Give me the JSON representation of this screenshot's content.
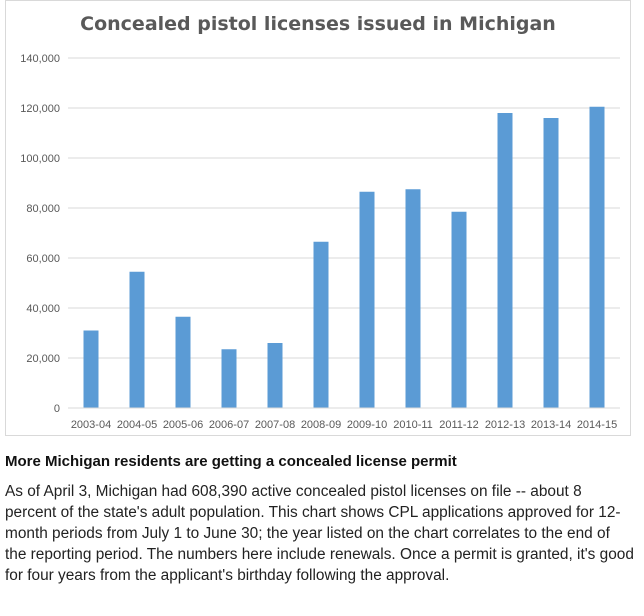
{
  "chart_data": {
    "type": "bar",
    "title": "Concealed pistol licenses issued in Michigan",
    "categories": [
      "2003-04",
      "2004-05",
      "2005-06",
      "2006-07",
      "2007-08",
      "2008-09",
      "2009-10",
      "2010-11",
      "2011-12",
      "2012-13",
      "2013-14",
      "2014-15"
    ],
    "values": [
      31000,
      54500,
      36500,
      23500,
      26000,
      66500,
      86500,
      87500,
      78500,
      118000,
      116000,
      120500
    ],
    "ylim": [
      0,
      140000
    ],
    "yticks": [
      0,
      20000,
      40000,
      60000,
      80000,
      100000,
      120000,
      140000
    ],
    "ytick_labels": [
      "0",
      "20,000",
      "40,000",
      "60,000",
      "80,000",
      "100,000",
      "120,000",
      "140,000"
    ],
    "xlabel": "",
    "ylabel": "",
    "grid": "horizontal",
    "bar_color": "#5b9bd5",
    "grid_color": "#d9d9d9"
  },
  "caption": {
    "title": "More Michigan residents are getting a concealed license permit",
    "body": "As of April 3, Michigan had 608,390 active concealed pistol licenses on file -- about 8 percent of the state's adult population. This chart shows CPL applications approved for 12-month periods from July 1 to June 30; the year listed on the chart correlates to the end of the reporting period. The numbers here include renewals. Once a permit is granted, it's good for four years from the applicant's birthday following the approval."
  }
}
